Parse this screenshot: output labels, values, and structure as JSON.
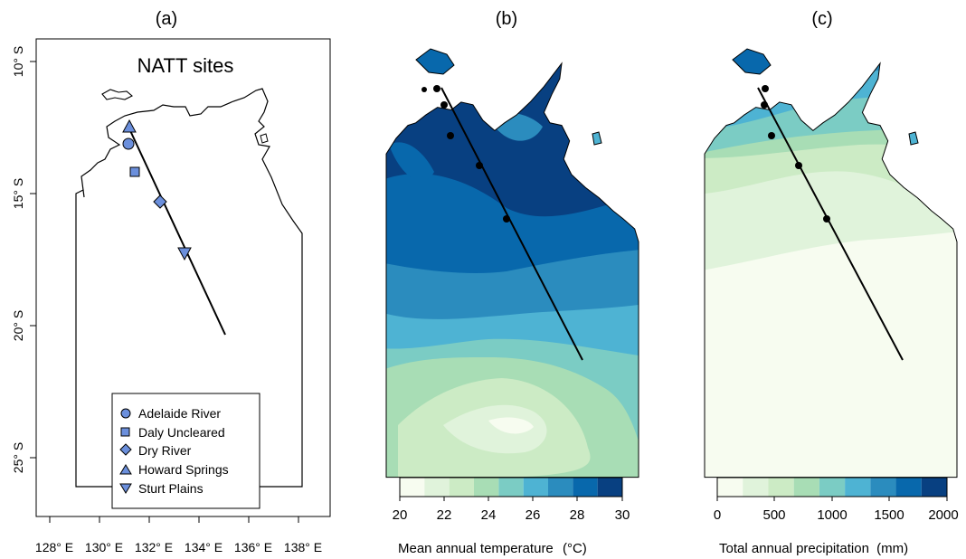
{
  "panels": [
    {
      "label": "(a)",
      "title": "NATT sites"
    },
    {
      "label": "(b)"
    },
    {
      "label": "(c)"
    }
  ],
  "map_a": {
    "lon_ticks": [
      "128° E",
      "130° E",
      "132° E",
      "134° E",
      "136° E",
      "138° E"
    ],
    "lat_ticks": [
      "10° S",
      "15° S",
      "20° S",
      "25° S"
    ],
    "legend": [
      {
        "label": "Adelaide River",
        "symbol": "circle"
      },
      {
        "label": "Daly Uncleared",
        "symbol": "square"
      },
      {
        "label": "Dry River",
        "symbol": "diamond"
      },
      {
        "label": "Howard Springs",
        "symbol": "triangle-up"
      },
      {
        "label": "Sturt Plains",
        "symbol": "triangle-down"
      }
    ],
    "marker_color": "#6b8fdc",
    "sites": [
      {
        "name": "Adelaide River",
        "lon": 131.12,
        "lat": 13.08
      },
      {
        "name": "Daly Uncleared",
        "lon": 131.39,
        "lat": 14.16
      },
      {
        "name": "Dry River",
        "lon": 132.37,
        "lat": 15.26
      },
      {
        "name": "Howard Springs",
        "lon": 131.15,
        "lat": 12.49
      },
      {
        "name": "Sturt Plains",
        "lon": 133.35,
        "lat": 17.15
      }
    ]
  },
  "colorbar_b": {
    "ticks": [
      "20",
      "22",
      "24",
      "26",
      "28",
      "30"
    ],
    "label": "Mean annual temperature",
    "unit": "(°C)",
    "colors": [
      "#f7fcf0",
      "#e0f3db",
      "#ccebc5",
      "#a8ddb5",
      "#7bccc4",
      "#4eb3d3",
      "#2b8cbe",
      "#0868ac",
      "#084081"
    ]
  },
  "colorbar_c": {
    "ticks": [
      "0",
      "500",
      "1000",
      "1500",
      "2000"
    ],
    "label": "Total annual precipitation",
    "unit": "(mm)",
    "colors": [
      "#f7fcf0",
      "#e0f3db",
      "#ccebc5",
      "#a8ddb5",
      "#7bccc4",
      "#4eb3d3",
      "#2b8cbe",
      "#0868ac",
      "#084081"
    ]
  }
}
